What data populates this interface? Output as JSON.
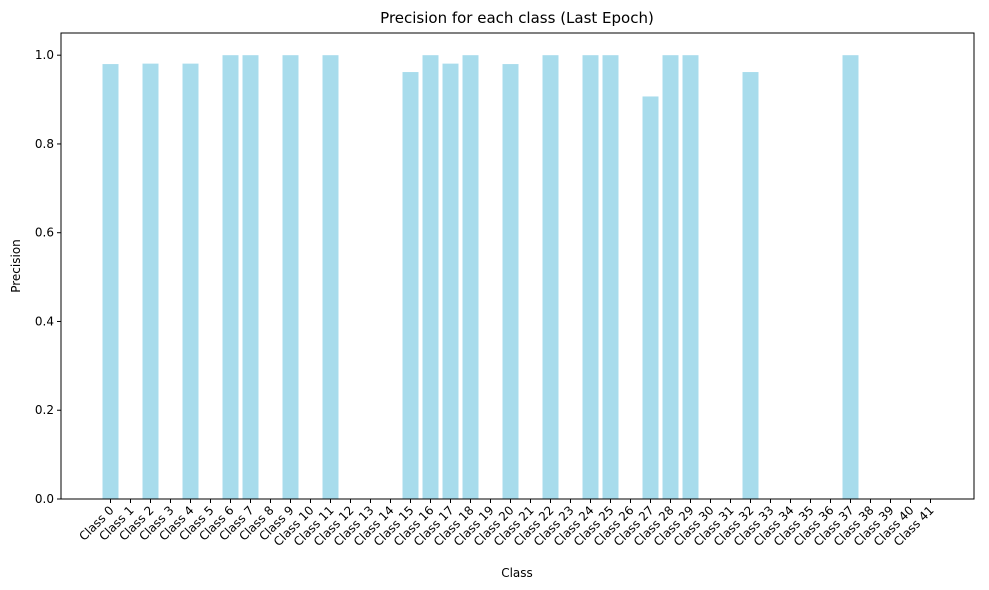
{
  "chart_data": {
    "type": "bar",
    "title": "Precision for each class (Last Epoch)",
    "xlabel": "Class",
    "ylabel": "Precision",
    "ylim": [
      0,
      1.05
    ],
    "yticks": [
      0.0,
      0.2,
      0.4,
      0.6,
      0.8,
      1.0
    ],
    "ytick_labels": [
      "0.0",
      "0.2",
      "0.4",
      "0.6",
      "0.8",
      "1.0"
    ],
    "bar_color": "#a8dcec",
    "grid": false,
    "categories": [
      "Class 0",
      "Class 1",
      "Class 2",
      "Class 3",
      "Class 4",
      "Class 5",
      "Class 6",
      "Class 7",
      "Class 8",
      "Class 9",
      "Class 10",
      "Class 11",
      "Class 12",
      "Class 13",
      "Class 14",
      "Class 15",
      "Class 16",
      "Class 17",
      "Class 18",
      "Class 19",
      "Class 20",
      "Class 21",
      "Class 22",
      "Class 23",
      "Class 24",
      "Class 25",
      "Class 26",
      "Class 27",
      "Class 28",
      "Class 29",
      "Class 30",
      "Class 31",
      "Class 32",
      "Class 33",
      "Class 34",
      "Class 35",
      "Class 36",
      "Class 37",
      "Class 38",
      "Class 39",
      "Class 40",
      "Class 41"
    ],
    "values": [
      0.98,
      0,
      0.981,
      0,
      0.981,
      0,
      1.0,
      1.0,
      0,
      1.0,
      0,
      1.0,
      0,
      0,
      0,
      0.962,
      1.0,
      0.981,
      1.0,
      0,
      0.98,
      0,
      1.0,
      0,
      1.0,
      1.0,
      0,
      0.907,
      1.0,
      1.0,
      0,
      0,
      0.962,
      0,
      0,
      0,
      0,
      1.0,
      0,
      0,
      0,
      0
    ]
  }
}
